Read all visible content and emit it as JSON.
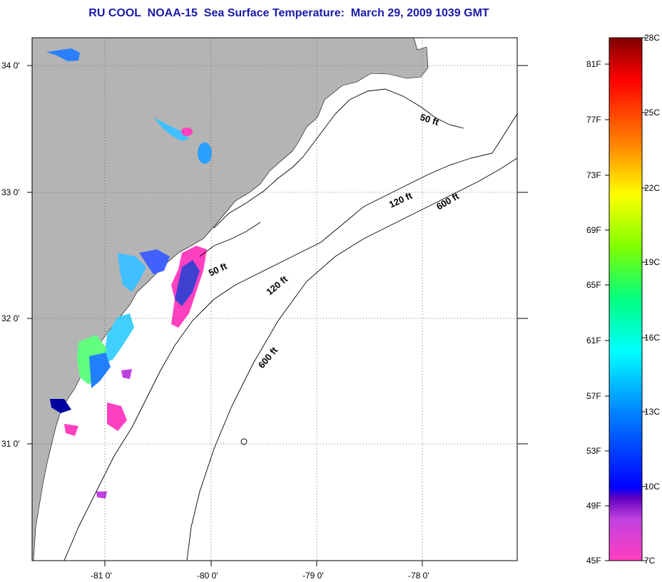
{
  "title": "RU COOL  NOAA-15  Sea Surface Temperature:  March 29, 2009 1039 GMT",
  "map": {
    "lat_labels": [
      "34 0'",
      "33 0'",
      "32 0'",
      "31 0'"
    ],
    "lon_labels": [
      "-81 0'",
      "-80 0'",
      "-79 0'",
      "-78 0'"
    ],
    "contour_labels": [
      "50 ft",
      "50 ft",
      "120 ft",
      "120 ft",
      "600 ft",
      "600 ft"
    ],
    "colors": {
      "land": "#b4b4b4",
      "ocean": "#ffffff",
      "cold_sst": "#ff40c0"
    }
  },
  "colorbar": {
    "fahrenheit_labels": [
      "81F",
      "77F",
      "73F",
      "69F",
      "65F",
      "61F",
      "57F",
      "53F",
      "49F",
      "45F"
    ],
    "celsius_labels": [
      "28C",
      "25C",
      "22C",
      "19C",
      "16C",
      "13C",
      "10C",
      "7C"
    ]
  }
}
